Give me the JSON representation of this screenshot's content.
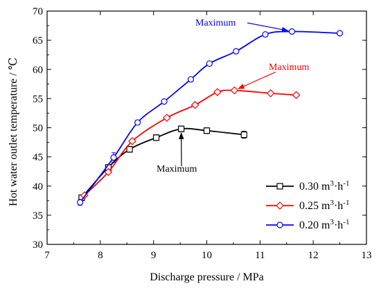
{
  "chart_data": {
    "type": "line",
    "xlabel": "Discharge pressure",
    "xunit": "MPa",
    "ylabel": "Hot water outlet temperature",
    "yunit": "℃",
    "xlim": [
      7,
      13
    ],
    "ylim": [
      30,
      70
    ],
    "xticks": [
      7,
      8,
      9,
      10,
      11,
      12,
      13
    ],
    "yticks": [
      30,
      35,
      40,
      45,
      50,
      55,
      60,
      65,
      70
    ],
    "grid": false,
    "legend_position": "bottom-right",
    "series": [
      {
        "name": "0.30 m³·h⁻¹",
        "legend": {
          "value": "0.30 m",
          "sup1": "3",
          "mid": "·h",
          "sup2": "-1"
        },
        "color": "#000000",
        "marker": "square",
        "x": [
          7.65,
          8.15,
          8.55,
          9.05,
          9.52,
          10.0,
          10.7
        ],
        "y": [
          38.0,
          43.2,
          46.3,
          48.3,
          49.8,
          49.5,
          48.8
        ],
        "errors": [
          0.4,
          0.4,
          0.5,
          0.5,
          0.5,
          0.5,
          0.6
        ]
      },
      {
        "name": "0.25 m³·h⁻¹",
        "legend": {
          "value": "0.25 m",
          "sup1": "3",
          "mid": "·h",
          "sup2": "-1"
        },
        "color": "#ff0000",
        "marker": "diamond",
        "x": [
          7.7,
          8.15,
          8.6,
          9.25,
          9.78,
          10.2,
          10.52,
          11.2,
          11.68
        ],
        "y": [
          38.4,
          42.4,
          47.7,
          51.7,
          53.9,
          56.1,
          56.4,
          55.9,
          55.6
        ],
        "errors": [
          0.3,
          0.3,
          0.3,
          0.3,
          0.3,
          0.3,
          0.3,
          0.3,
          0.3
        ]
      },
      {
        "name": "0.20 m³·h⁻¹",
        "legend": {
          "value": "0.20 m",
          "sup1": "3",
          "mid": "·h",
          "sup2": "-1"
        },
        "color": "#0000ff",
        "marker": "circle",
        "x": [
          7.62,
          8.25,
          8.7,
          9.2,
          9.7,
          10.05,
          10.55,
          11.1,
          11.6,
          12.5
        ],
        "y": [
          37.2,
          44.9,
          50.9,
          54.5,
          58.3,
          61.0,
          63.1,
          66.0,
          66.5,
          66.2
        ],
        "errors": [
          0.5,
          0.8,
          0.4,
          0.3,
          0.3,
          0.3,
          0.3,
          0.3,
          0.3,
          0.3
        ]
      }
    ],
    "annotations": [
      {
        "text": "Maximum",
        "color": "#0000ff",
        "series": 2,
        "point": 8
      },
      {
        "text": "Maximum",
        "color": "#ff0000",
        "series": 1,
        "point": 6
      },
      {
        "text": "Maximum",
        "color": "#000000",
        "series": 0,
        "point": 4
      }
    ]
  }
}
